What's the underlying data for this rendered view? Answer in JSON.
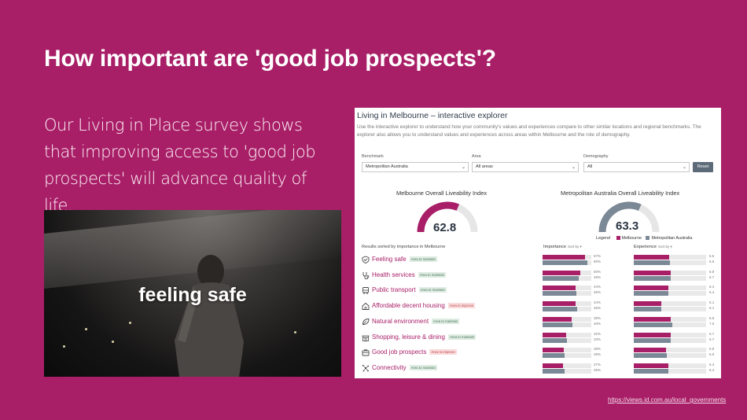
{
  "slide": {
    "title": "How important are 'good job prospects'?",
    "intro": "Our Living in Place survey shows that improving access to 'good job prospects' will advance quality of life.",
    "photo_caption": "feeling safe",
    "source_link": "https://views.id.com.au/local_governments"
  },
  "explorer": {
    "title": "Living in Melbourne – interactive explorer",
    "description": "Use the interactive explorer to understand how your community's values and experiences compare to other similar locations and regional benchmarks. The explorer also allows you to understand values and experiences across areas within Melbourne and the role of demography.",
    "filters": [
      {
        "label": "Benchmark",
        "value": "Metropolitan Australia"
      },
      {
        "label": "Area",
        "value": "All areas"
      },
      {
        "label": "Demography",
        "value": "All"
      }
    ],
    "reset_label": "Reset",
    "gauges": [
      {
        "title": "Melbourne Overall Liveability Index",
        "value": "62.8",
        "fraction": 0.628,
        "color": "#a81e67"
      },
      {
        "title": "Metropolitan Australia Overall Liveability Index",
        "value": "63.3",
        "fraction": 0.633,
        "color": "#7b8896"
      }
    ],
    "legend": {
      "label": "Legend",
      "series_a": "Melbourne",
      "series_b": "Metropolitan Australia",
      "color_a": "#a81e67",
      "color_b": "#7b8896"
    },
    "sorted_label": "Results sorted by importance in Melbourne",
    "importance_header": "Importance",
    "experience_header": "Experience",
    "sortby_label": "Sort by ▾",
    "rows": [
      {
        "label": "Feeling safe",
        "icon": "shield-icon",
        "tag": "Area to maintain",
        "tag_type": "maintain",
        "imp_m": "57%",
        "imp_a": "60%",
        "imp_m_v": 57,
        "imp_a_v": 60,
        "exp_m": "6.5",
        "exp_a": "6.6",
        "exp_m_v": 6.5,
        "exp_a_v": 6.6
      },
      {
        "label": "Health services",
        "icon": "stethoscope-icon",
        "tag": "Area to maintain",
        "tag_type": "maintain",
        "imp_m": "50%",
        "imp_a": "48%",
        "imp_m_v": 50,
        "imp_a_v": 48,
        "exp_m": "6.8",
        "exp_a": "6.7",
        "exp_m_v": 6.8,
        "exp_a_v": 6.7
      },
      {
        "label": "Public transport",
        "icon": "bus-icon",
        "tag": "Area to maintain",
        "tag_type": "maintain",
        "imp_m": "44%",
        "imp_a": "45%",
        "imp_m_v": 44,
        "imp_a_v": 45,
        "exp_m": "6.4",
        "exp_a": "6.4",
        "exp_m_v": 6.4,
        "exp_a_v": 6.4
      },
      {
        "label": "Affordable decent housing",
        "icon": "house-icon",
        "tag": "Area to improve",
        "tag_type": "improve",
        "imp_m": "44%",
        "imp_a": "46%",
        "imp_m_v": 44,
        "imp_a_v": 46,
        "exp_m": "5.1",
        "exp_a": "5.1",
        "exp_m_v": 5.1,
        "exp_a_v": 5.1
      },
      {
        "label": "Natural environment",
        "icon": "leaf-icon",
        "tag": "Area to maintain",
        "tag_type": "maintain",
        "imp_m": "39%",
        "imp_a": "40%",
        "imp_m_v": 39,
        "imp_a_v": 40,
        "exp_m": "6.8",
        "exp_a": "7.0",
        "exp_m_v": 6.8,
        "exp_a_v": 7.0
      },
      {
        "label": "Shopping, leisure & dining",
        "icon": "shop-icon",
        "tag": "Area to maintain",
        "tag_type": "maintain",
        "imp_m": "32%",
        "imp_a": "33%",
        "imp_m_v": 32,
        "imp_a_v": 33,
        "exp_m": "6.7",
        "exp_a": "6.7",
        "exp_m_v": 6.7,
        "exp_a_v": 6.7
      },
      {
        "label": "Good job prospects",
        "icon": "briefcase-icon",
        "tag": "Area to improve",
        "tag_type": "improve",
        "imp_m": "28%",
        "imp_a": "29%",
        "imp_m_v": 28,
        "imp_a_v": 29,
        "exp_m": "5.9",
        "exp_a": "6.0",
        "exp_m_v": 5.9,
        "exp_a_v": 6.0
      },
      {
        "label": "Connectivity",
        "icon": "network-icon",
        "tag": "Area to maintain",
        "tag_type": "maintain",
        "imp_m": "27%",
        "imp_a": "29%",
        "imp_m_v": 27,
        "imp_a_v": 29,
        "exp_m": "6.4",
        "exp_a": "6.4",
        "exp_m_v": 6.4,
        "exp_a_v": 6.4
      }
    ]
  }
}
